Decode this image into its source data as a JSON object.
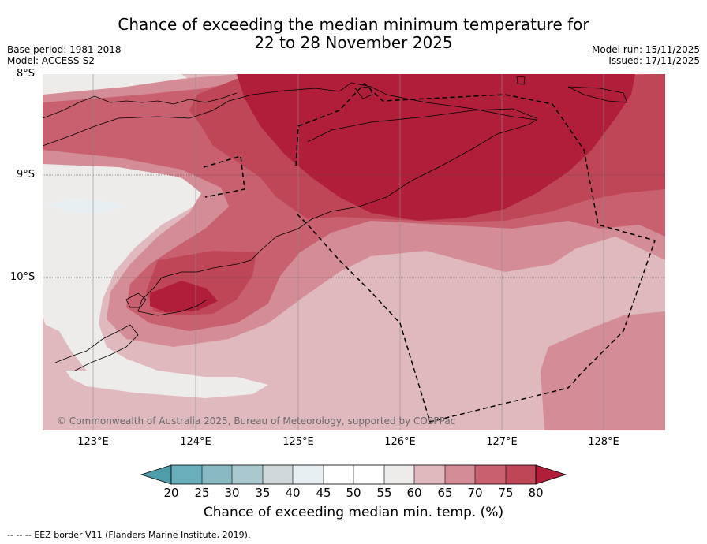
{
  "title": {
    "line1": "Chance of exceeding the median minimum temperature for",
    "line2": "22 to 28 November 2025"
  },
  "meta": {
    "base_period": "Base period: 1981-2018",
    "model": "Model: ACCESS-S2",
    "model_run": "Model run: 15/11/2025",
    "issued": "Issued: 17/11/2025"
  },
  "map": {
    "lat_labels": [
      "8°S",
      "9°S",
      "10°S"
    ],
    "lon_labels": [
      "123°E",
      "124°E",
      "125°E",
      "126°E",
      "127°E",
      "128°E"
    ],
    "copyright": "© Commonwealth of Australia 2025, Bureau of Meteorology, supported by COSPPac"
  },
  "colorbar": {
    "ticks": [
      "20",
      "25",
      "30",
      "35",
      "40",
      "45",
      "50",
      "55",
      "60",
      "65",
      "70",
      "75",
      "80"
    ],
    "colors": {
      "below20": "#4f9daa",
      "c20_25": "#6aaebb",
      "c25_30": "#89b9c3",
      "c30_35": "#a9c9ce",
      "c35_40": "#cfd7d9",
      "c40_45": "#e8eff2",
      "c45_50": "#ffffff",
      "c50_55": "#ffffff",
      "c55_60": "#eeecea",
      "c60_65": "#e0b9bf",
      "c65_70": "#d48d96",
      "c70_75": "#c8606f",
      "c75_80": "#bf4656",
      "above80": "#b01e3a"
    },
    "label": "Chance of exceeding median min. temp. (%)"
  },
  "footnote": "--  --  -- EEZ border V11 (Flanders Marine Institute, 2019)."
}
